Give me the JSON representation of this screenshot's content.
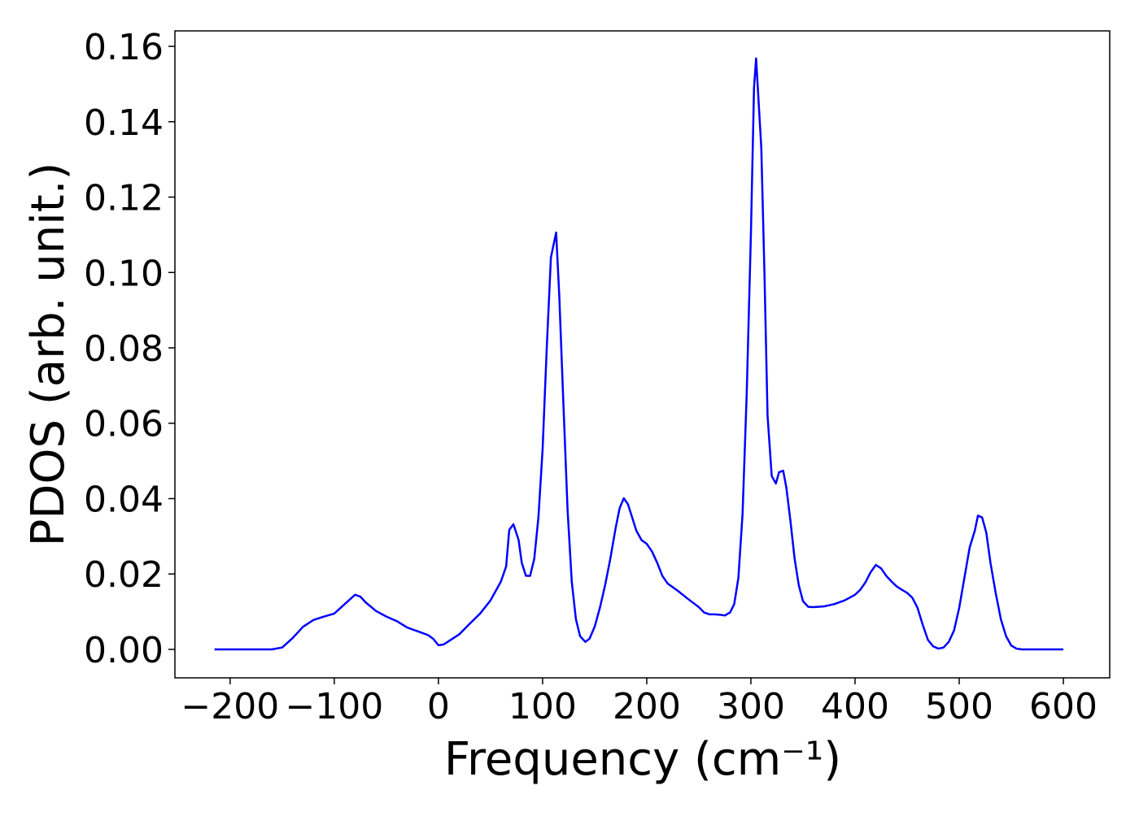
{
  "chart_data": {
    "type": "line",
    "xlabel": "Frequency (cm⁻¹)",
    "ylabel": "PDOS (arb. unit.)",
    "x": [
      -215,
      -200,
      -180,
      -160,
      -150,
      -140,
      -130,
      -120,
      -110,
      -100,
      -90,
      -80,
      -75,
      -70,
      -60,
      -50,
      -40,
      -30,
      -20,
      -10,
      -5,
      0,
      5,
      10,
      20,
      30,
      40,
      50,
      60,
      65,
      68,
      72,
      77,
      80,
      84,
      88,
      92,
      96,
      100,
      104,
      108,
      113,
      116,
      120,
      124,
      128,
      132,
      136,
      141,
      145,
      150,
      155,
      160,
      165,
      170,
      174,
      178,
      182,
      186,
      190,
      195,
      200,
      205,
      210,
      215,
      220,
      230,
      240,
      250,
      255,
      260,
      265,
      270,
      275,
      280,
      284,
      288,
      292,
      296,
      300,
      303,
      305,
      310,
      313,
      316,
      320,
      324,
      327,
      331,
      334,
      338,
      342,
      346,
      350,
      355,
      360,
      370,
      380,
      390,
      400,
      405,
      410,
      415,
      420,
      425,
      430,
      435,
      440,
      445,
      450,
      455,
      460,
      465,
      470,
      475,
      480,
      485,
      490,
      495,
      500,
      505,
      510,
      515,
      518,
      522,
      526,
      530,
      535,
      540,
      545,
      550,
      555,
      560,
      580,
      600
    ],
    "series": [
      {
        "color": "#0000ff",
        "values": [
          0,
          0,
          0,
          0,
          0.0005,
          0.003,
          0.006,
          0.0078,
          0.0087,
          0.0095,
          0.012,
          0.0145,
          0.014,
          0.0125,
          0.0102,
          0.0087,
          0.0075,
          0.0058,
          0.0048,
          0.0038,
          0.0028,
          0.0011,
          0.0013,
          0.0022,
          0.004,
          0.0068,
          0.0095,
          0.013,
          0.018,
          0.022,
          0.0317,
          0.0332,
          0.029,
          0.023,
          0.0195,
          0.0195,
          0.024,
          0.035,
          0.053,
          0.08,
          0.104,
          0.1106,
          0.094,
          0.065,
          0.037,
          0.018,
          0.008,
          0.0035,
          0.002,
          0.0028,
          0.006,
          0.011,
          0.017,
          0.024,
          0.032,
          0.0375,
          0.0401,
          0.0385,
          0.035,
          0.0315,
          0.029,
          0.028,
          0.026,
          0.023,
          0.0195,
          0.0175,
          0.0155,
          0.0133,
          0.0112,
          0.0098,
          0.0093,
          0.0093,
          0.0092,
          0.009,
          0.0098,
          0.012,
          0.019,
          0.036,
          0.068,
          0.11,
          0.149,
          0.1568,
          0.133,
          0.1,
          0.062,
          0.046,
          0.044,
          0.047,
          0.0474,
          0.043,
          0.034,
          0.024,
          0.017,
          0.0128,
          0.0113,
          0.0112,
          0.0114,
          0.012,
          0.013,
          0.0145,
          0.0158,
          0.0178,
          0.0205,
          0.0224,
          0.0215,
          0.0195,
          0.018,
          0.0167,
          0.0158,
          0.015,
          0.0137,
          0.011,
          0.0065,
          0.0025,
          0.0008,
          0.0002,
          0.0005,
          0.002,
          0.005,
          0.011,
          0.019,
          0.027,
          0.0315,
          0.0355,
          0.035,
          0.031,
          0.023,
          0.015,
          0.008,
          0.0035,
          0.001,
          0.0002,
          0,
          0,
          0
        ]
      }
    ],
    "xlim": [
      -253,
      644.5
    ],
    "ylim": [
      -0.00755,
      0.1641
    ],
    "xticks": [
      {
        "value": -200,
        "label": "−200"
      },
      {
        "value": -100,
        "label": "−100"
      },
      0,
      100,
      200,
      300,
      400,
      500,
      600
    ],
    "yticks": [
      {
        "value": 0,
        "label": "0.00"
      },
      0.02,
      0.04,
      0.06,
      0.08,
      {
        "value": 0.1,
        "label": "0.10"
      },
      0.12,
      0.14,
      0.16
    ],
    "grid": false
  }
}
